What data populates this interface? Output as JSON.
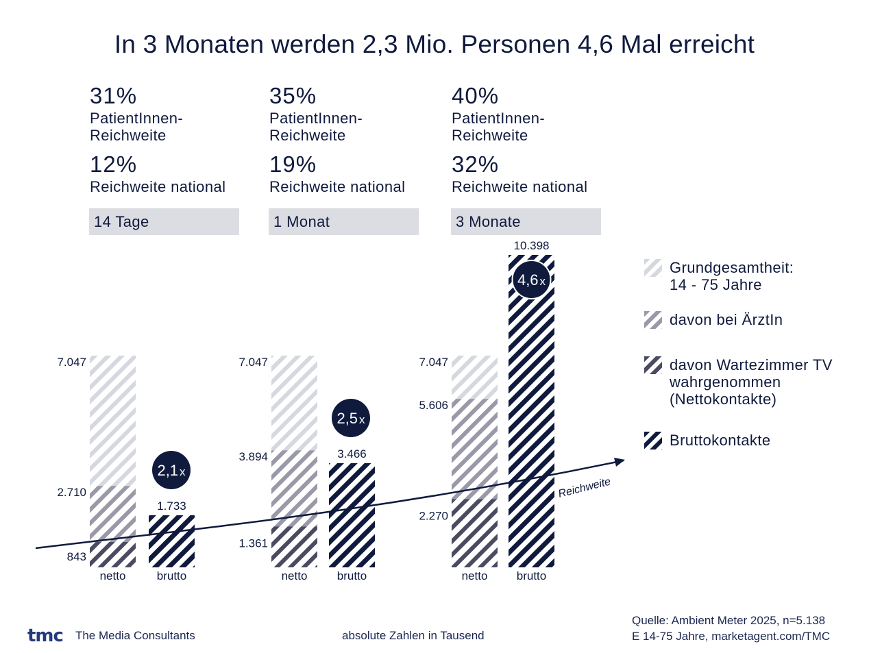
{
  "title": "In 3 Monaten werden 2,3 Mio. Personen 4,6 Mal erreicht",
  "kpis": [
    {
      "patient_reach": "31%",
      "patient_reach_label": "PatientInnen-\nReichweite",
      "national_reach": "12%",
      "national_reach_label": "Reichweite national",
      "period": "14 Tage"
    },
    {
      "patient_reach": "35%",
      "patient_reach_label": "PatientInnen-\nReichweite",
      "national_reach": "19%",
      "national_reach_label": "Reichweite national",
      "period": "1 Monat"
    },
    {
      "patient_reach": "40%",
      "patient_reach_label": "PatientInnen-\nReichweite",
      "national_reach": "32%",
      "national_reach_label": "Reichweite national",
      "period": "3 Monate"
    }
  ],
  "legend": [
    {
      "label": "Grundgesamtheit:\n14 - 75 Jahre",
      "color": "#d5d8df"
    },
    {
      "label": "davon bei ÄrztIn",
      "color": "#9a99a8"
    },
    {
      "label": "davon Wartezimmer TV\nwahrgenommen\n(Nettokontakte)",
      "color": "#4a4a62"
    },
    {
      "label": "Bruttokontakte",
      "color": "#0f1a3d"
    }
  ],
  "chart_data": {
    "type": "bar",
    "title": "In 3 Monaten werden 2,3 Mio. Personen 4,6 Mal erreicht",
    "unit_note": "absolute Zahlen in Tausend",
    "categories": [
      "14 Tage",
      "1 Monat",
      "3 Monate"
    ],
    "bar_labels": [
      "netto",
      "brutto"
    ],
    "series": [
      {
        "name": "Grundgesamtheit: 14 - 75 Jahre",
        "bar": "netto",
        "values": [
          7047,
          7047,
          7047
        ],
        "labels": [
          "7.047",
          "7.047",
          "7.047"
        ]
      },
      {
        "name": "davon bei ÄrztIn",
        "bar": "netto",
        "values": [
          2710,
          3894,
          5606
        ],
        "labels": [
          "2.710",
          "3.894",
          "5.606"
        ]
      },
      {
        "name": "davon Wartezimmer TV wahrgenommen (Nettokontakte)",
        "bar": "netto",
        "values": [
          843,
          1361,
          2270
        ],
        "labels": [
          "843",
          "1.361",
          "2.270"
        ]
      },
      {
        "name": "Bruttokontakte",
        "bar": "brutto",
        "values": [
          1733,
          3466,
          10398
        ],
        "labels": [
          "1.733",
          "3.466",
          "10.398"
        ]
      }
    ],
    "multipliers": [
      "2,1",
      "2,5",
      "4,6"
    ],
    "multiplier_suffix": "x",
    "trend_arrow_label": "Reichweite",
    "ylim": [
      0,
      10398
    ],
    "grid": false,
    "legend_position": "right"
  },
  "footer": {
    "logo": "tmc",
    "company": "The Media Consultants",
    "note": "absolute Zahlen in Tausend",
    "source_line1": "Quelle: Ambient Meter 2025, n=5.138",
    "source_line2": "E 14-75 Jahre, marketagent.com/TMC"
  }
}
